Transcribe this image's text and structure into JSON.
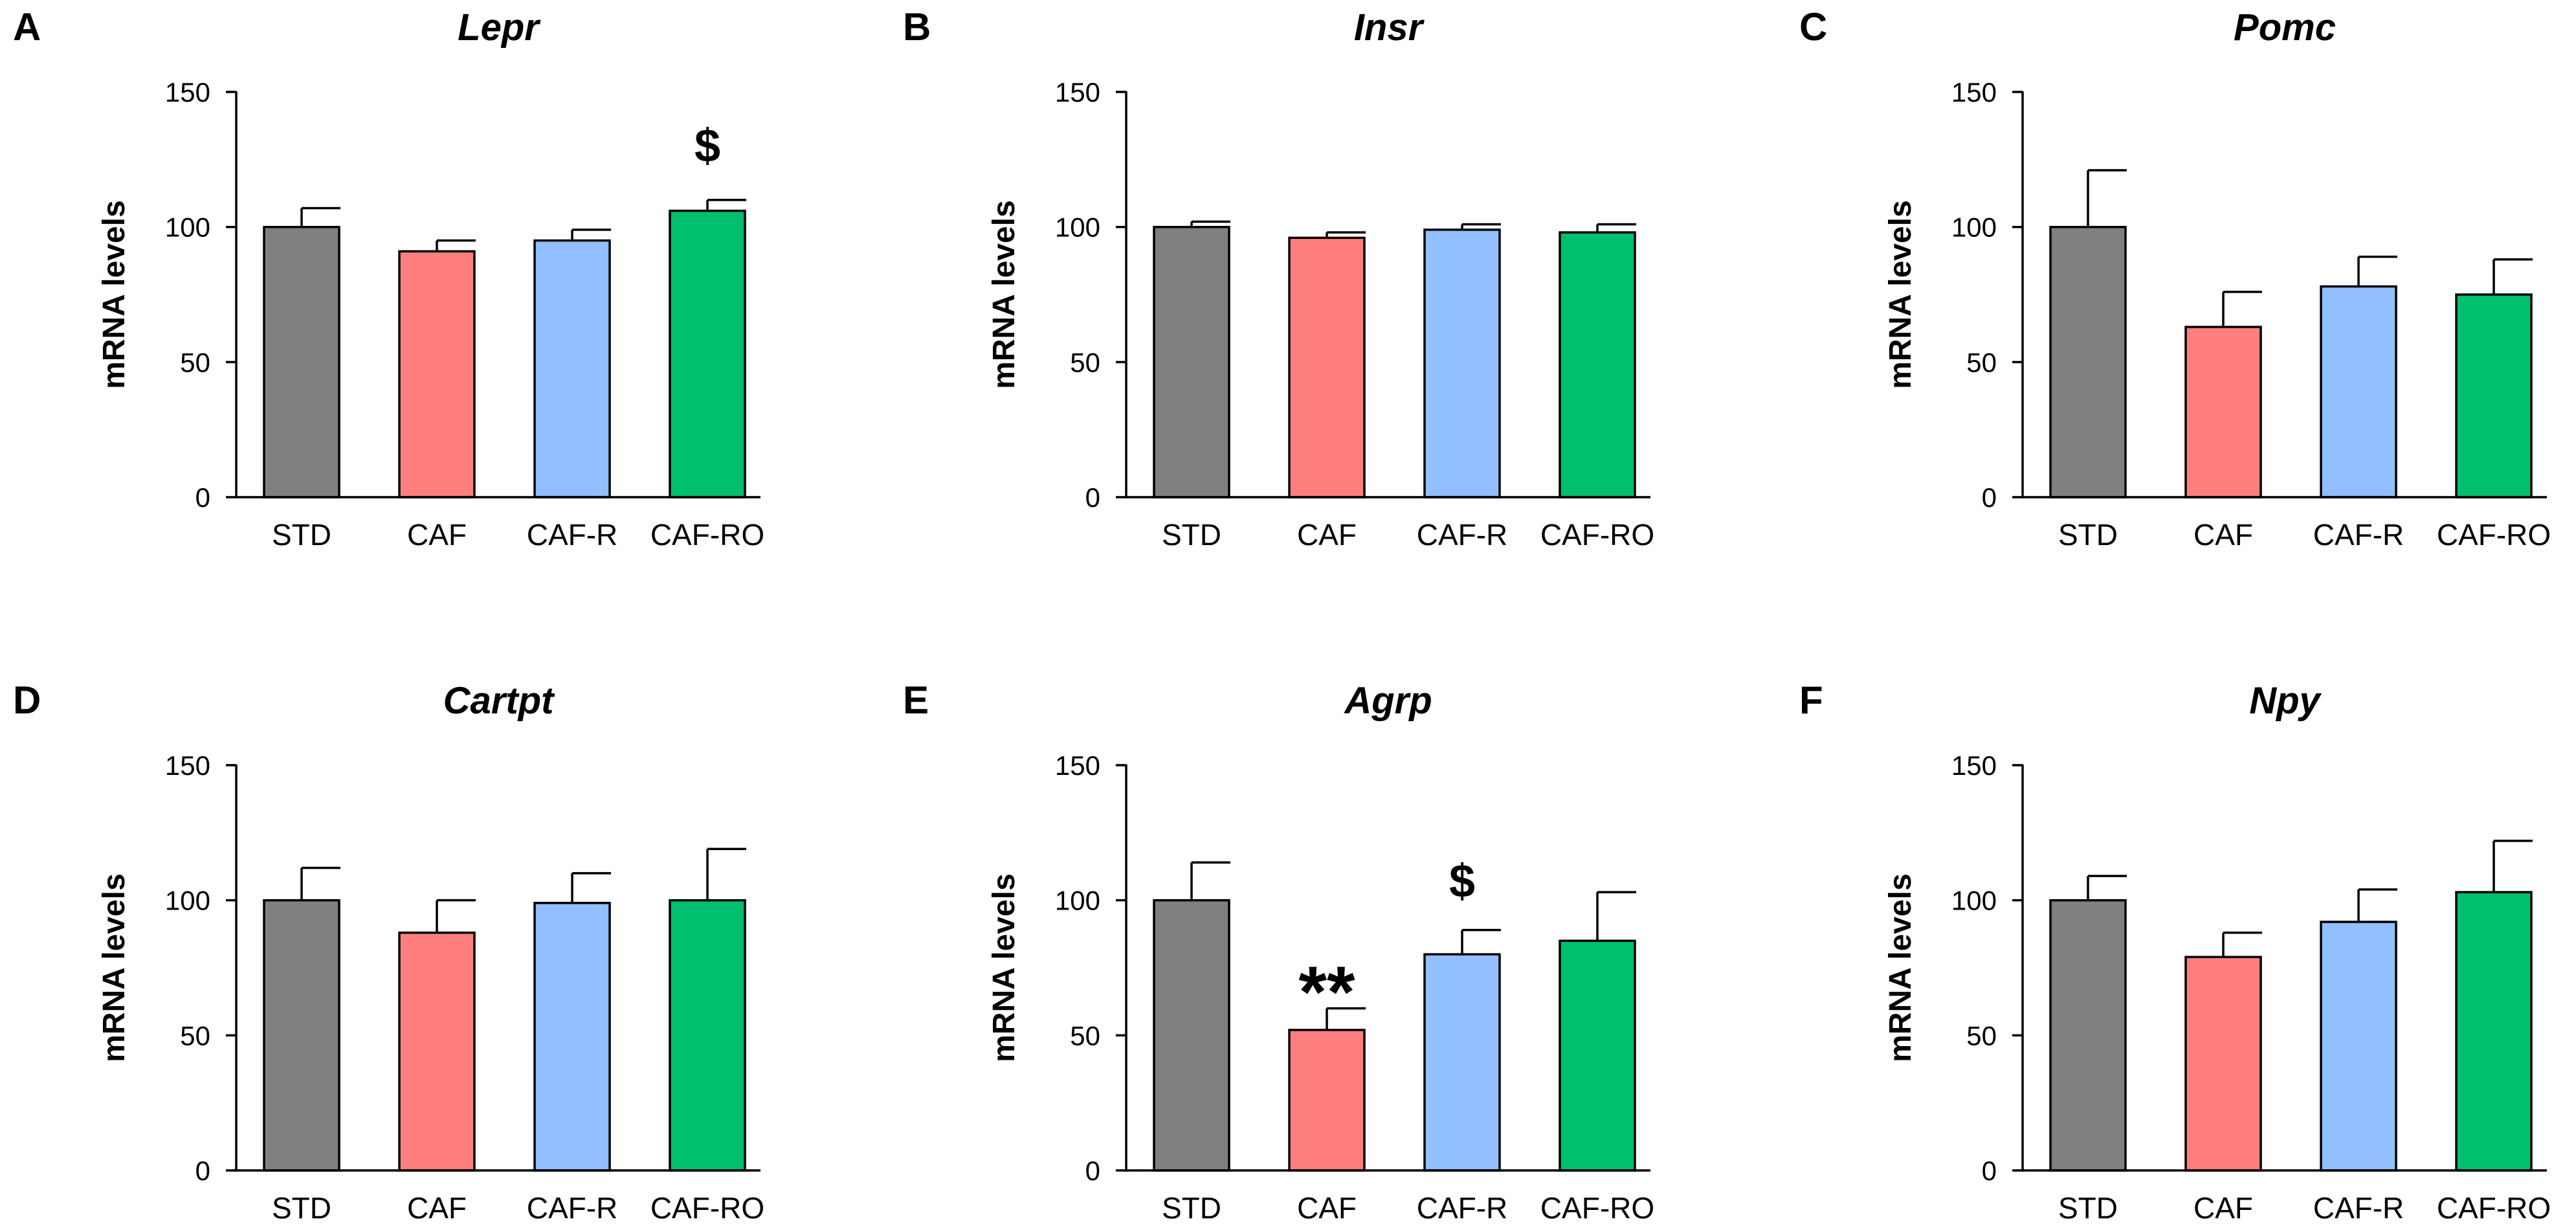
{
  "figure": {
    "background": "#ffffff"
  },
  "style": {
    "colors": [
      "#808080",
      "#ff7f7f",
      "#91bfff",
      "#00bf6f"
    ],
    "stroke": "#000000"
  },
  "chart_data": [
    {
      "panel": "A",
      "type": "bar",
      "title": "Lepr",
      "xlabel": "",
      "ylabel": "mRNA levels",
      "ylim": [
        0,
        150
      ],
      "yticks": [
        0,
        50,
        100,
        150
      ],
      "grid": false,
      "categories": [
        "STD",
        "CAF",
        "CAF-R",
        "CAF-RO"
      ],
      "values": [
        100,
        91,
        95,
        106
      ],
      "errors": [
        7,
        4,
        4,
        4
      ],
      "annotations": [
        {
          "category": "CAF-RO",
          "text": "$",
          "value": 130
        }
      ]
    },
    {
      "panel": "B",
      "type": "bar",
      "title": "Insr",
      "xlabel": "",
      "ylabel": "mRNA levels",
      "ylim": [
        0,
        150
      ],
      "yticks": [
        0,
        50,
        100,
        150
      ],
      "grid": false,
      "categories": [
        "STD",
        "CAF",
        "CAF-R",
        "CAF-RO"
      ],
      "values": [
        100,
        96,
        99,
        98
      ],
      "errors": [
        2,
        2,
        2,
        3
      ],
      "annotations": []
    },
    {
      "panel": "C",
      "type": "bar",
      "title": "Pomc",
      "xlabel": "",
      "ylabel": "mRNA levels",
      "ylim": [
        0,
        150
      ],
      "yticks": [
        0,
        50,
        100,
        150
      ],
      "grid": false,
      "categories": [
        "STD",
        "CAF",
        "CAF-R",
        "CAF-RO"
      ],
      "values": [
        100,
        63,
        78,
        75
      ],
      "errors": [
        21,
        13,
        11,
        13
      ],
      "annotations": []
    },
    {
      "panel": "D",
      "type": "bar",
      "title": "Cartpt",
      "xlabel": "",
      "ylabel": "mRNA levels",
      "ylim": [
        0,
        150
      ],
      "yticks": [
        0,
        50,
        100,
        150
      ],
      "grid": false,
      "categories": [
        "STD",
        "CAF",
        "CAF-R",
        "CAF-RO"
      ],
      "values": [
        100,
        88,
        99,
        100
      ],
      "errors": [
        12,
        12,
        11,
        19
      ],
      "annotations": []
    },
    {
      "panel": "E",
      "type": "bar",
      "title": "Agrp",
      "xlabel": "",
      "ylabel": "mRNA levels",
      "ylim": [
        0,
        150
      ],
      "yticks": [
        0,
        50,
        100,
        150
      ],
      "grid": false,
      "categories": [
        "STD",
        "CAF",
        "CAF-R",
        "CAF-RO"
      ],
      "values": [
        100,
        52,
        80,
        85
      ],
      "errors": [
        14,
        8,
        9,
        18
      ],
      "annotations": [
        {
          "category": "CAF",
          "text": "**",
          "value": 70
        },
        {
          "category": "CAF-R",
          "text": "$",
          "value": 107
        }
      ]
    },
    {
      "panel": "F",
      "type": "bar",
      "title": "Npy",
      "xlabel": "",
      "ylabel": "mRNA levels",
      "ylim": [
        0,
        150
      ],
      "yticks": [
        0,
        50,
        100,
        150
      ],
      "grid": false,
      "categories": [
        "STD",
        "CAF",
        "CAF-R",
        "CAF-RO"
      ],
      "values": [
        100,
        79,
        92,
        103
      ],
      "errors": [
        9,
        9,
        12,
        19
      ],
      "annotations": []
    }
  ]
}
